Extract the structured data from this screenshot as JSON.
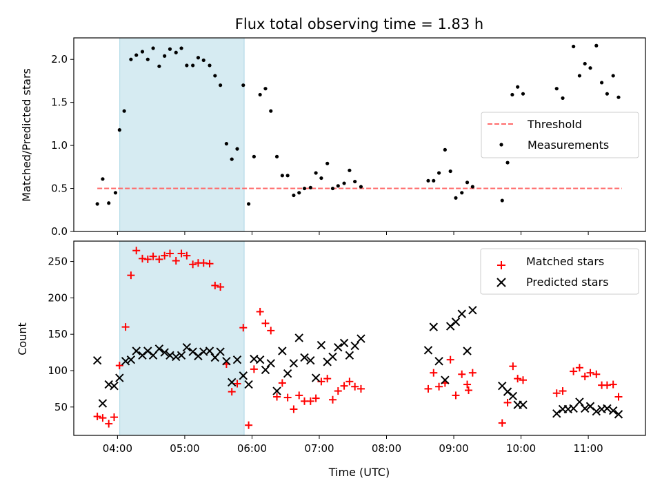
{
  "chart_data": {
    "type": "scatter",
    "title": "Flux total observing time = 1.83 h",
    "xlabel": "Time (UTC)",
    "x_ticks": [
      "04:00",
      "05:00",
      "06:00",
      "07:00",
      "08:00",
      "09:00",
      "10:00",
      "11:00"
    ],
    "xlim": [
      3.35,
      11.85
    ],
    "shaded_interval": [
      "04:02",
      "05:53"
    ],
    "colors": {
      "shade": "#add8e6",
      "threshold": "#ff6b6b",
      "measurements": "#000000",
      "matched": "#ff0000",
      "predicted": "#000000"
    },
    "top": {
      "ylabel": "Matched/Predicted stars",
      "ylim": [
        0,
        2.25
      ],
      "y_ticks": [
        "0.0",
        "0.5",
        "1.0",
        "1.5",
        "2.0"
      ],
      "threshold": 0.5,
      "threshold_x": [
        3.7,
        11.5
      ],
      "legend": {
        "position": "center-right",
        "threshold_label": "Threshold",
        "measurements_label": "Measurements"
      },
      "measurements": [
        [
          3.7,
          0.32
        ],
        [
          3.78,
          0.61
        ],
        [
          3.87,
          0.33
        ],
        [
          3.97,
          0.45
        ],
        [
          4.03,
          1.18
        ],
        [
          4.1,
          1.4
        ],
        [
          4.2,
          2.0
        ],
        [
          4.28,
          2.05
        ],
        [
          4.37,
          2.09
        ],
        [
          4.45,
          2.0
        ],
        [
          4.53,
          2.13
        ],
        [
          4.62,
          1.92
        ],
        [
          4.7,
          2.04
        ],
        [
          4.78,
          2.12
        ],
        [
          4.87,
          2.08
        ],
        [
          4.95,
          2.13
        ],
        [
          5.03,
          1.93
        ],
        [
          5.12,
          1.93
        ],
        [
          5.2,
          2.02
        ],
        [
          5.28,
          1.99
        ],
        [
          5.37,
          1.93
        ],
        [
          5.45,
          1.81
        ],
        [
          5.53,
          1.7
        ],
        [
          5.62,
          1.02
        ],
        [
          5.7,
          0.84
        ],
        [
          5.78,
          0.96
        ],
        [
          5.87,
          1.7
        ],
        [
          5.95,
          0.32
        ],
        [
          6.03,
          0.87
        ],
        [
          6.12,
          1.59
        ],
        [
          6.2,
          1.66
        ],
        [
          6.28,
          1.4
        ],
        [
          6.37,
          0.87
        ],
        [
          6.45,
          0.65
        ],
        [
          6.53,
          0.65
        ],
        [
          6.62,
          0.42
        ],
        [
          6.7,
          0.45
        ],
        [
          6.78,
          0.5
        ],
        [
          6.87,
          0.51
        ],
        [
          6.95,
          0.68
        ],
        [
          7.03,
          0.62
        ],
        [
          7.12,
          0.79
        ],
        [
          7.2,
          0.5
        ],
        [
          7.28,
          0.53
        ],
        [
          7.37,
          0.56
        ],
        [
          7.45,
          0.71
        ],
        [
          7.53,
          0.58
        ],
        [
          7.62,
          0.52
        ],
        [
          8.62,
          0.59
        ],
        [
          8.7,
          0.59
        ],
        [
          8.78,
          0.68
        ],
        [
          8.87,
          0.95
        ],
        [
          8.95,
          0.7
        ],
        [
          9.03,
          0.39
        ],
        [
          9.12,
          0.45
        ],
        [
          9.2,
          0.57
        ],
        [
          9.28,
          0.52
        ],
        [
          9.72,
          0.36
        ],
        [
          9.8,
          0.8
        ],
        [
          9.87,
          1.59
        ],
        [
          9.95,
          1.68
        ],
        [
          10.03,
          1.6
        ],
        [
          10.53,
          1.66
        ],
        [
          10.62,
          1.55
        ],
        [
          10.78,
          2.15
        ],
        [
          10.87,
          1.81
        ],
        [
          10.95,
          1.95
        ],
        [
          11.03,
          1.9
        ],
        [
          11.12,
          2.16
        ],
        [
          11.2,
          1.73
        ],
        [
          11.28,
          1.6
        ],
        [
          11.37,
          1.81
        ],
        [
          11.45,
          1.56
        ]
      ]
    },
    "bottom": {
      "ylabel": "Count",
      "ylim": [
        11,
        278
      ],
      "y_ticks": [
        "50",
        "100",
        "150",
        "200",
        "250"
      ],
      "legend": {
        "position": "top-right",
        "matched_label": "Matched stars",
        "predicted_label": "Predicted stars"
      },
      "matched_stars": [
        [
          3.7,
          37
        ],
        [
          3.78,
          35
        ],
        [
          3.87,
          27
        ],
        [
          3.95,
          36
        ],
        [
          4.03,
          107
        ],
        [
          4.12,
          160
        ],
        [
          4.2,
          231
        ],
        [
          4.28,
          265
        ],
        [
          4.37,
          254
        ],
        [
          4.45,
          253
        ],
        [
          4.53,
          257
        ],
        [
          4.62,
          253
        ],
        [
          4.7,
          258
        ],
        [
          4.78,
          261
        ],
        [
          4.87,
          251
        ],
        [
          4.95,
          261
        ],
        [
          5.03,
          258
        ],
        [
          5.12,
          246
        ],
        [
          5.2,
          248
        ],
        [
          5.28,
          248
        ],
        [
          5.37,
          247
        ],
        [
          5.45,
          217
        ],
        [
          5.53,
          215
        ],
        [
          5.62,
          109
        ],
        [
          5.7,
          71
        ],
        [
          5.78,
          82
        ],
        [
          5.87,
          159
        ],
        [
          5.95,
          25
        ],
        [
          6.03,
          102
        ],
        [
          6.12,
          181
        ],
        [
          6.2,
          165
        ],
        [
          6.28,
          155
        ],
        [
          6.37,
          64
        ],
        [
          6.45,
          83
        ],
        [
          6.53,
          63
        ],
        [
          6.62,
          47
        ],
        [
          6.7,
          66
        ],
        [
          6.78,
          58
        ],
        [
          6.87,
          58
        ],
        [
          6.95,
          62
        ],
        [
          7.03,
          85
        ],
        [
          7.12,
          89
        ],
        [
          7.2,
          60
        ],
        [
          7.28,
          72
        ],
        [
          7.37,
          79
        ],
        [
          7.45,
          85
        ],
        [
          7.53,
          78
        ],
        [
          7.62,
          75
        ],
        [
          8.62,
          75
        ],
        [
          8.7,
          97
        ],
        [
          8.78,
          78
        ],
        [
          8.87,
          83
        ],
        [
          8.95,
          115
        ],
        [
          9.03,
          66
        ],
        [
          9.12,
          95
        ],
        [
          9.2,
          81
        ],
        [
          9.22,
          73
        ],
        [
          9.28,
          97
        ],
        [
          9.72,
          28
        ],
        [
          9.8,
          56
        ],
        [
          9.88,
          106
        ],
        [
          9.95,
          89
        ],
        [
          10.03,
          87
        ],
        [
          10.53,
          69
        ],
        [
          10.62,
          72
        ],
        [
          10.78,
          99
        ],
        [
          10.87,
          104
        ],
        [
          10.95,
          92
        ],
        [
          11.03,
          97
        ],
        [
          11.12,
          95
        ],
        [
          11.2,
          80
        ],
        [
          11.28,
          80
        ],
        [
          11.37,
          81
        ],
        [
          11.45,
          64
        ]
      ],
      "predicted_stars": [
        [
          3.7,
          114
        ],
        [
          3.78,
          55
        ],
        [
          3.87,
          81
        ],
        [
          3.95,
          79
        ],
        [
          4.03,
          90
        ],
        [
          4.12,
          113
        ],
        [
          4.2,
          115
        ],
        [
          4.28,
          127
        ],
        [
          4.37,
          121
        ],
        [
          4.45,
          127
        ],
        [
          4.53,
          121
        ],
        [
          4.62,
          130
        ],
        [
          4.7,
          125
        ],
        [
          4.78,
          121
        ],
        [
          4.87,
          119
        ],
        [
          4.95,
          121
        ],
        [
          5.03,
          132
        ],
        [
          5.12,
          126
        ],
        [
          5.2,
          120
        ],
        [
          5.28,
          126
        ],
        [
          5.37,
          127
        ],
        [
          5.45,
          118
        ],
        [
          5.53,
          126
        ],
        [
          5.62,
          113
        ],
        [
          5.7,
          84
        ],
        [
          5.78,
          115
        ],
        [
          5.87,
          93
        ],
        [
          5.95,
          81
        ],
        [
          6.03,
          116
        ],
        [
          6.12,
          115
        ],
        [
          6.2,
          101
        ],
        [
          6.28,
          110
        ],
        [
          6.37,
          72
        ],
        [
          6.45,
          127
        ],
        [
          6.53,
          96
        ],
        [
          6.62,
          110
        ],
        [
          6.7,
          145
        ],
        [
          6.78,
          118
        ],
        [
          6.87,
          114
        ],
        [
          6.95,
          90
        ],
        [
          7.03,
          135
        ],
        [
          7.12,
          112
        ],
        [
          7.2,
          119
        ],
        [
          7.28,
          132
        ],
        [
          7.37,
          138
        ],
        [
          7.45,
          121
        ],
        [
          7.53,
          134
        ],
        [
          7.62,
          144
        ],
        [
          8.62,
          128
        ],
        [
          8.7,
          160
        ],
        [
          8.78,
          113
        ],
        [
          8.87,
          87
        ],
        [
          8.95,
          161
        ],
        [
          9.03,
          167
        ],
        [
          9.12,
          178
        ],
        [
          9.2,
          127
        ],
        [
          9.28,
          183
        ],
        [
          9.72,
          79
        ],
        [
          9.8,
          71
        ],
        [
          9.88,
          65
        ],
        [
          9.95,
          53
        ],
        [
          10.03,
          53
        ],
        [
          10.53,
          41
        ],
        [
          10.62,
          47
        ],
        [
          10.7,
          47
        ],
        [
          10.78,
          48
        ],
        [
          10.87,
          57
        ],
        [
          10.95,
          48
        ],
        [
          11.03,
          51
        ],
        [
          11.12,
          44
        ],
        [
          11.2,
          47
        ],
        [
          11.28,
          48
        ],
        [
          11.37,
          45
        ],
        [
          11.45,
          40
        ]
      ]
    }
  }
}
